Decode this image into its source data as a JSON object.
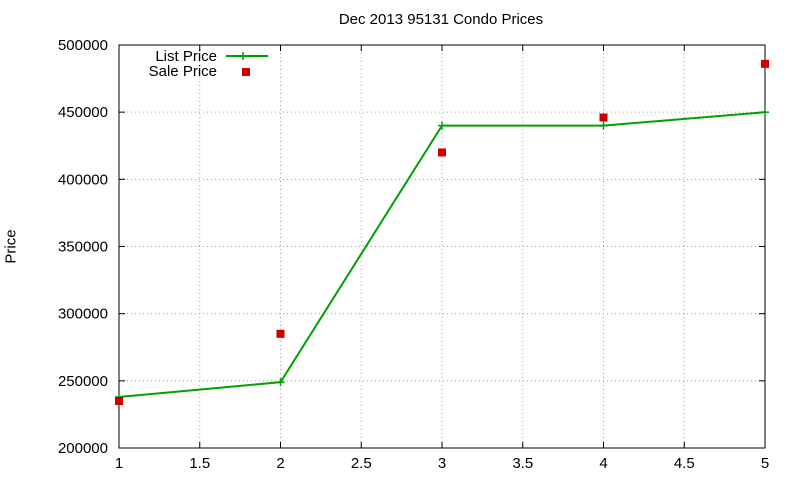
{
  "chart_data": {
    "type": "line",
    "title": "Dec 2013 95131 Condo Prices",
    "xlabel": "",
    "ylabel": "Price",
    "xlim": [
      1,
      5
    ],
    "ylim": [
      200000,
      500000
    ],
    "x_ticks": [
      "1",
      "1.5",
      "2",
      "2.5",
      "3",
      "3.5",
      "4",
      "4.5",
      "5"
    ],
    "y_ticks": [
      "200000",
      "250000",
      "300000",
      "350000",
      "400000",
      "450000",
      "500000"
    ],
    "grid": true,
    "legend_position": "top-left",
    "series": [
      {
        "name": "List Price",
        "style": "line+plus-markers",
        "color": "#00a000",
        "x": [
          1,
          2,
          3,
          4,
          5
        ],
        "y": [
          238000,
          249000,
          440000,
          440000,
          450000
        ]
      },
      {
        "name": "Sale Price",
        "style": "square-markers",
        "color": "#cc0000",
        "x": [
          1,
          2,
          3,
          4,
          5
        ],
        "y": [
          235000,
          285000,
          420000,
          446000,
          486000
        ]
      }
    ]
  }
}
